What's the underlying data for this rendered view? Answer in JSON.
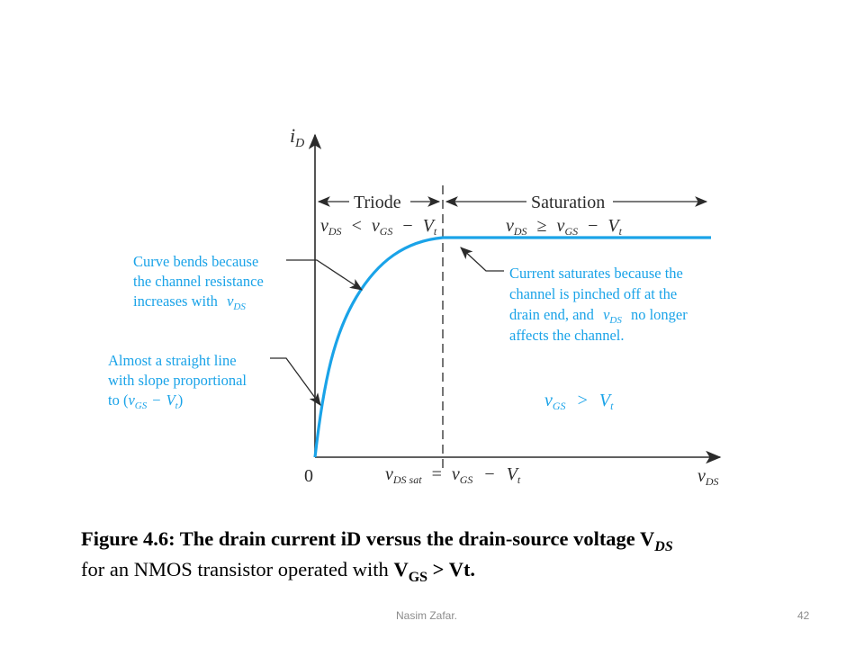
{
  "axes": {
    "y_label": {
      "main": "i",
      "sub": "D"
    },
    "x_label": {
      "main": "v",
      "sub": "DS"
    },
    "origin": "0",
    "x_marker": {
      "lhs_main": "v",
      "lhs_sub": "DS sat",
      "eq": "=",
      "rhs_main": "v",
      "rhs_sub": "GS",
      "minus": "−",
      "vt_main": "V",
      "vt_sub": "t"
    }
  },
  "regions": {
    "triode": {
      "label": "Triode",
      "condition": {
        "a_main": "v",
        "a_sub": "DS",
        "op": "<",
        "b_main": "v",
        "b_sub": "GS",
        "minus": "−",
        "c_main": "V",
        "c_sub": "t"
      }
    },
    "saturation": {
      "label": "Saturation",
      "condition": {
        "a_main": "v",
        "a_sub": "DS",
        "op": "≥",
        "b_main": "v",
        "b_sub": "GS",
        "minus": "−",
        "c_main": "V",
        "c_sub": "t"
      }
    }
  },
  "annotations": {
    "curve_bends": {
      "lines": [
        "Curve bends because",
        "the channel resistance",
        "increases with"
      ],
      "var_main": "v",
      "var_sub": "DS"
    },
    "straight_line": {
      "lines": [
        "Almost a straight line",
        "with slope proportional",
        "to ("
      ],
      "expr": {
        "a_main": "v",
        "a_sub": "GS",
        "minus": "−",
        "b_main": "V",
        "b_sub": "t",
        "close": ")"
      }
    },
    "saturates": {
      "lines": [
        "Current saturates because the",
        "channel is pinched off at the",
        "drain end, and",
        "no longer",
        "affects the channel."
      ],
      "var_main": "v",
      "var_sub": "DS"
    },
    "condition": {
      "a_main": "v",
      "a_sub": "GS",
      "op": ">",
      "b_main": "V",
      "b_sub": "t"
    }
  },
  "caption": {
    "line1": "Figure 4.6: The drain current iD versus the drain-source voltage V",
    "line1_sub": "DS",
    "line2_pre": "for an NMOS transistor operated with ",
    "line2_v": "V",
    "line2_sub": "GS",
    "line2_post": " > Vt."
  },
  "footer": {
    "author": "Nasim Zafar.",
    "page": "42"
  },
  "colors": {
    "curve": "#1aa3e8",
    "annotation_text": "#1aa3e8",
    "axis": "#2b2b2b"
  }
}
